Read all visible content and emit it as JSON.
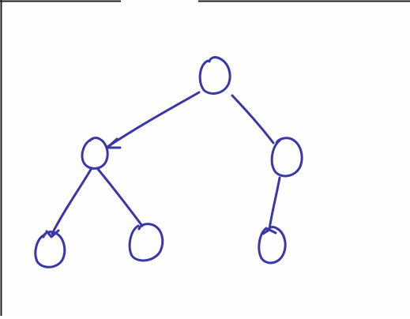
{
  "diagram": {
    "type": "tree",
    "ink_color": "#3a37a6",
    "frame_color": "#1f1f1f",
    "nodes": [
      {
        "id": "root"
      },
      {
        "id": "left-child"
      },
      {
        "id": "right-child"
      },
      {
        "id": "left-left-grandchild"
      },
      {
        "id": "left-right-grandchild"
      },
      {
        "id": "right-left-grandchild"
      }
    ],
    "edges": [
      {
        "from": "root",
        "to": "left-child",
        "arrow": true
      },
      {
        "from": "root",
        "to": "right-child",
        "arrow": false
      },
      {
        "from": "left-child",
        "to": "left-left-grandchild",
        "arrow": true
      },
      {
        "from": "left-child",
        "to": "left-right-grandchild",
        "arrow": false
      },
      {
        "from": "right-child",
        "to": "right-left-grandchild",
        "arrow": true
      }
    ]
  }
}
